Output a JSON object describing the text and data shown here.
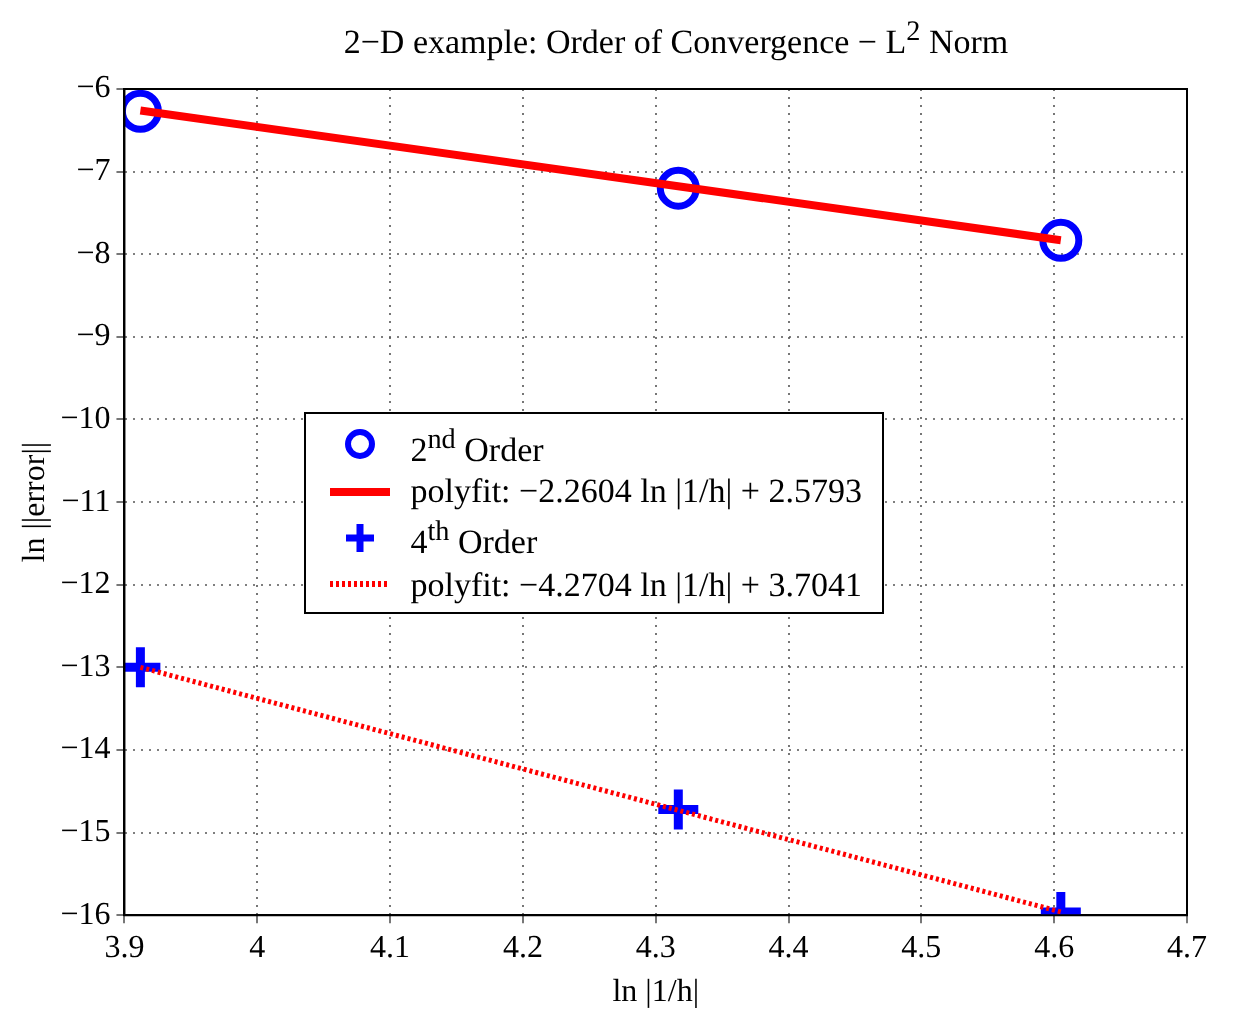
{
  "chart_data": {
    "type": "scatter",
    "title": "2−D example: Order of Convergence − L$^{2}$ Norm",
    "xlabel": "ln |1/h|",
    "ylabel": "ln ||error||",
    "series": [
      {
        "name": "2$^{nd}$ Order",
        "marker": "circle",
        "color": "#0000ff",
        "x": [
          3.912,
          4.317,
          4.605
        ],
        "values": [
          -6.27,
          -7.2,
          -7.83
        ]
      },
      {
        "name": "polyfit: −2.2604 ln |1/h| + 2.5793",
        "type": "line",
        "marker": "none",
        "line_style": "solid",
        "color": "#ff0000",
        "x": [
          3.912,
          4.605
        ],
        "values": [
          -6.26,
          -7.83
        ]
      },
      {
        "name": "4$^{th}$ Order",
        "marker": "cross",
        "color": "#0000ff",
        "x": [
          3.912,
          4.317,
          4.605
        ],
        "values": [
          -13.0,
          -14.72,
          -15.96
        ]
      },
      {
        "name": "polyfit: −4.2704 ln |1/h| + 3.7041",
        "type": "line",
        "marker": "none",
        "line_style": "dotted",
        "color": "#ff0000",
        "x": [
          3.912,
          4.605
        ],
        "values": [
          -13.0,
          -15.96
        ]
      }
    ],
    "xlim": [
      3.9,
      4.7
    ],
    "xticks": [
      3.9,
      4,
      4.1,
      4.2,
      4.3,
      4.4,
      4.5,
      4.6,
      4.7
    ],
    "ylim": [
      -16,
      -6
    ],
    "yticks": [
      -16,
      -15,
      -14,
      -13,
      -12,
      -11,
      -10,
      -9,
      -8,
      -7,
      -6
    ],
    "grid": true,
    "legend": "left"
  }
}
